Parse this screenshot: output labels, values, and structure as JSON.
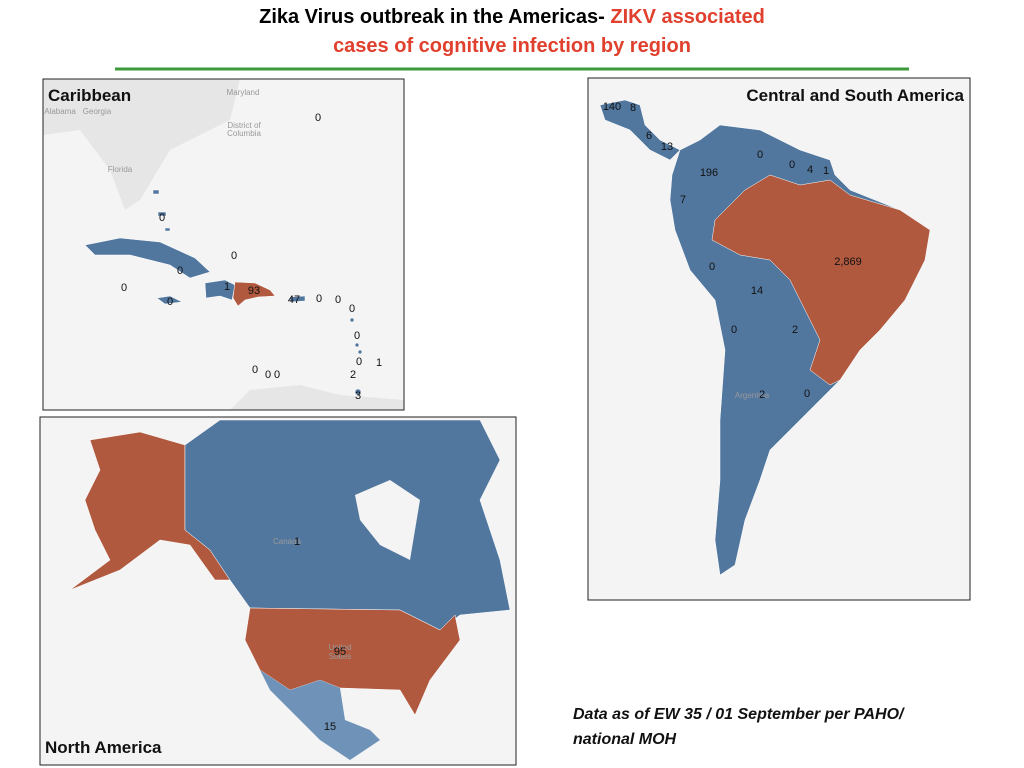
{
  "title": {
    "lead": "Zika Virus outbreak in the Americas-",
    "highlight": [
      "ZIKV associated",
      "cases of cognitive infection by region"
    ]
  },
  "caribbean": {
    "title": "Caribbean",
    "places": [
      "Maryland",
      "Alabama",
      "Georgia",
      "District of",
      "Columbia",
      "Florida"
    ],
    "labels": [
      "0",
      "0",
      "0",
      "0",
      "0",
      "1",
      "93",
      "0",
      "47",
      "0",
      "0",
      "0",
      "0",
      "0",
      "1",
      "2",
      "0",
      "0",
      "0",
      "3"
    ]
  },
  "south": {
    "title": "Central and South America",
    "places": [
      "Argentina"
    ],
    "labels": [
      "140",
      "8",
      "6",
      "13",
      "0",
      "196",
      "0",
      "4",
      "1",
      "7",
      "2,869",
      "0",
      "14",
      "0",
      "2",
      "2",
      "0"
    ]
  },
  "north": {
    "title": "North America",
    "places": [
      "Canada",
      "United",
      "States"
    ],
    "labels": [
      "1",
      "95",
      "15"
    ]
  },
  "footnote": [
    "Data as of EW 35 / 01 September per PAHO/",
    "national MOH"
  ]
}
